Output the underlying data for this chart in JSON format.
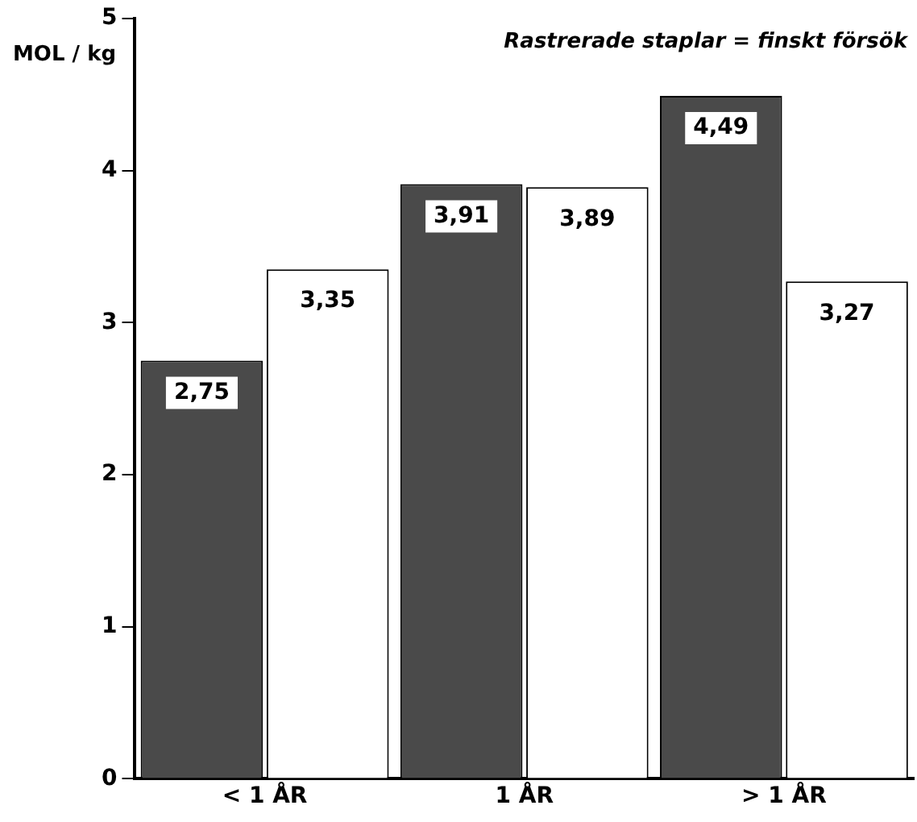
{
  "chart_data": {
    "type": "bar",
    "ylabel": "MOL / kg",
    "annotations": [
      "Rastrerade staplar = finskt försök"
    ],
    "categories": [
      "< 1 ÅR",
      "1 ÅR",
      "> 1 ÅR"
    ],
    "series": [
      {
        "color": "#4a4a4a",
        "values": [
          2.75,
          3.91,
          4.49
        ],
        "value_labels": [
          "2,75",
          "3,91",
          "4,49"
        ]
      },
      {
        "color": "#ffffff",
        "values": [
          3.35,
          3.89,
          3.27
        ],
        "value_labels": [
          "3,35",
          "3,89",
          "3,27"
        ]
      }
    ],
    "ylim": [
      0,
      5
    ],
    "yticks": [
      0,
      1,
      2,
      3,
      4,
      5
    ],
    "grid": false,
    "legend": false
  }
}
